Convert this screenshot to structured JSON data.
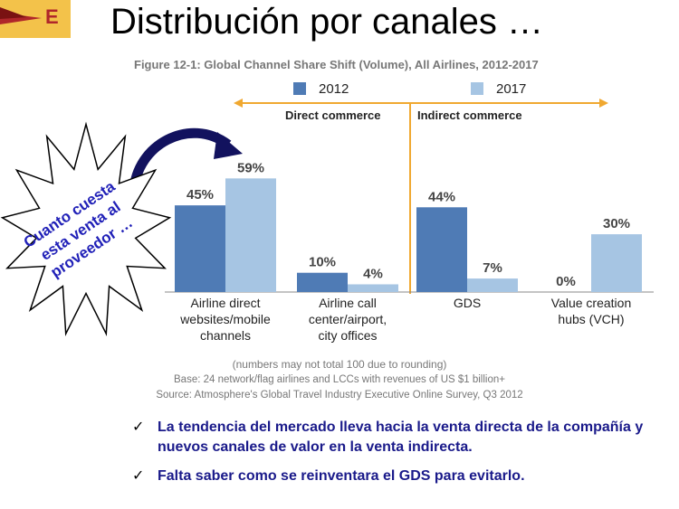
{
  "slide": {
    "title": "Distribución por canales …",
    "logo_letter": "E",
    "callout": [
      "Cuanto cuesta",
      "esta venta al",
      "proveedor …"
    ]
  },
  "legend": {
    "2012": "2012",
    "2017": "2017"
  },
  "sections": {
    "direct": "Direct commerce",
    "indirect": "Indirect commerce"
  },
  "notes": {
    "rounding": "(numbers may not total 100 due to rounding)",
    "base": "Base: 24 network/flag airlines and LCCs with revenues of US $1 billion+",
    "source": "Source: Atmosphere's Global Travel Industry Executive Online Survey, Q3 2012"
  },
  "bullets": [
    "La tendencia del mercado lleva hacia la venta directa de la compañía y nuevos canales de valor en la venta indirecta.",
    "Falta saber como se reinventara el GDS para evitarlo."
  ],
  "colors": {
    "series_2012": "#4f7bb5",
    "series_2017": "#a6c5e3",
    "divider": "#f0a830",
    "logo_bg": "#f3c24a",
    "bullet_text": "#1a1a8a"
  },
  "chart_data": {
    "type": "bar",
    "title": "Figure 12-1: Global Channel Share Shift (Volume), All Airlines, 2012-2017",
    "categories": [
      [
        "Airline direct",
        "websites/mobile",
        "channels"
      ],
      [
        "Airline call",
        "center/airport,",
        "city offices"
      ],
      [
        "GDS"
      ],
      [
        "Value creation",
        "hubs (VCH)"
      ]
    ],
    "series": [
      {
        "name": "2012",
        "values": [
          45,
          10,
          44,
          0
        ],
        "labels": [
          "45%",
          "10%",
          "44%",
          "0%"
        ]
      },
      {
        "name": "2017",
        "values": [
          59,
          4,
          7,
          30
        ],
        "labels": [
          "59%",
          "4%",
          "7%",
          "30%"
        ]
      }
    ],
    "ylim": [
      0,
      60
    ],
    "grid": false,
    "legend": "top"
  }
}
